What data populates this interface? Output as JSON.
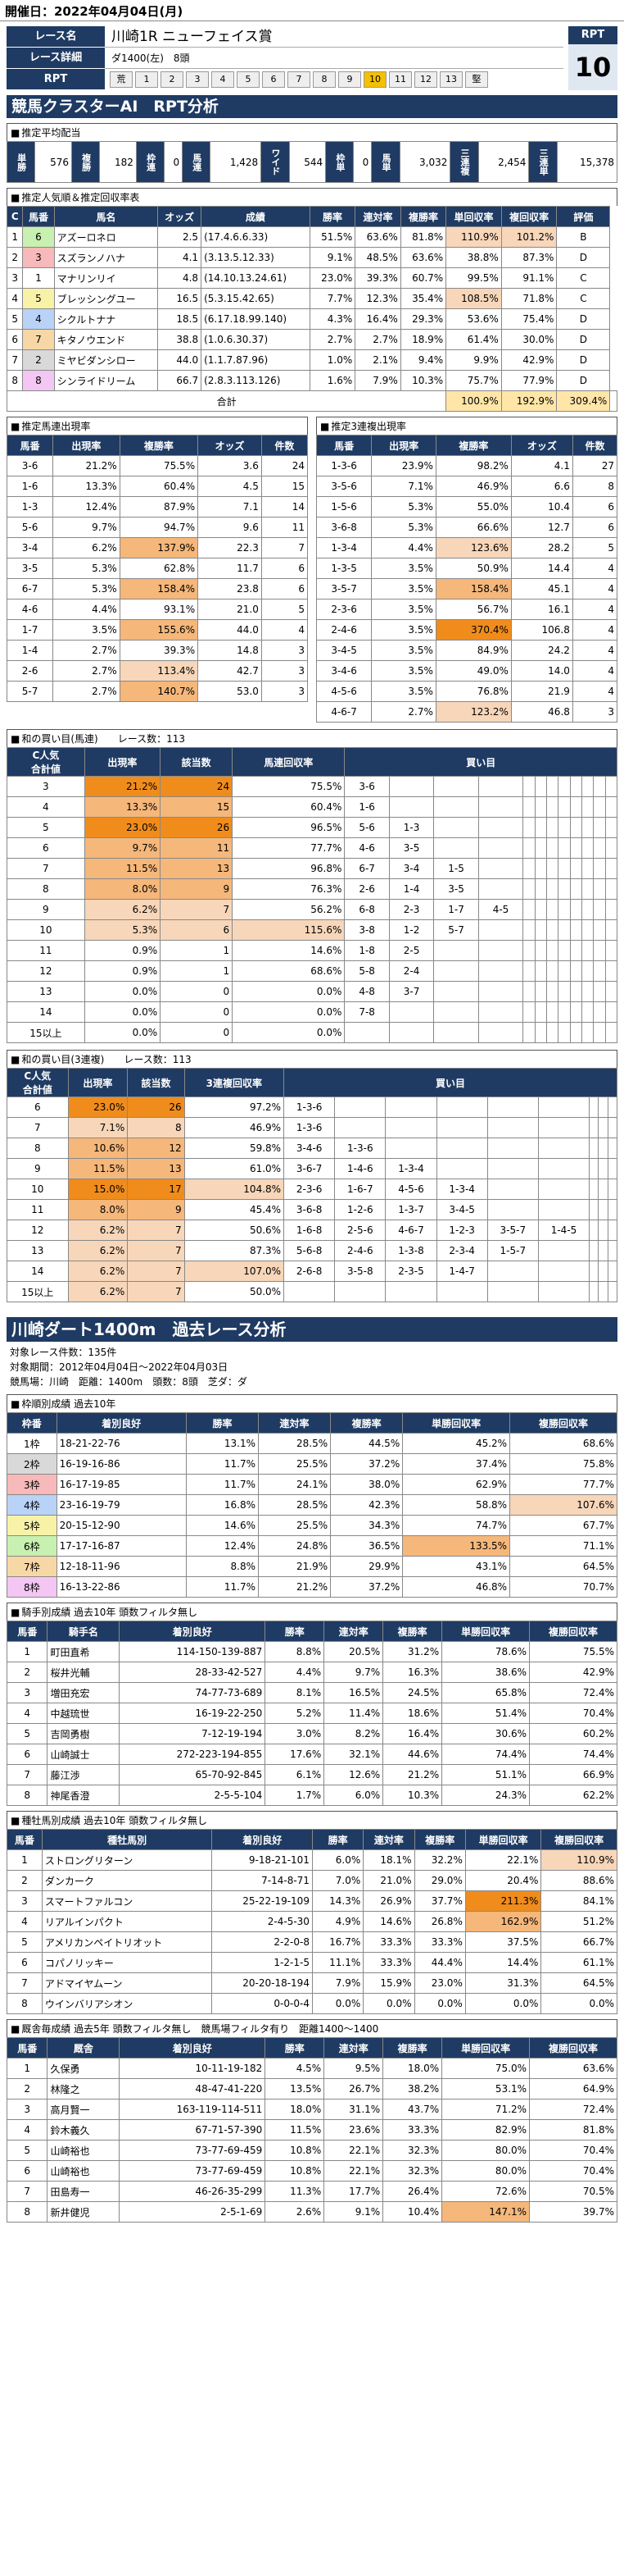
{
  "header": {
    "date_line": "開催日：2022年04月04日(月)"
  },
  "race": {
    "name_label": "レース名",
    "name": "川崎1R ニューフェイス賞",
    "detail_label": "レース詳細",
    "detail": "ダ1400(左)　8頭",
    "rpt_label": "RPT",
    "rpt_scale": [
      "荒",
      "1",
      "2",
      "3",
      "4",
      "5",
      "6",
      "7",
      "8",
      "9",
      "10",
      "11",
      "12",
      "13",
      "堅"
    ],
    "rpt_value": "10"
  },
  "banner": "競馬クラスターAI　RPT分析",
  "avg_payout": {
    "title": "推定平均配当",
    "items": [
      [
        "単勝",
        "576"
      ],
      [
        "複勝",
        "182"
      ],
      [
        "枠連",
        "0"
      ],
      [
        "馬連",
        "1,428"
      ],
      [
        "ワイド",
        "544"
      ],
      [
        "枠単",
        "0"
      ],
      [
        "馬単",
        "3,032"
      ],
      [
        "三連複",
        "2,454"
      ],
      [
        "三連単",
        "15,378"
      ]
    ]
  },
  "popularity": {
    "title": "推定人気順＆推定回収率表",
    "headers": [
      "C",
      "馬番",
      "馬名",
      "オッズ",
      "成績",
      "勝率",
      "連対率",
      "複勝率",
      "単回収率",
      "複回収率",
      "評価"
    ],
    "rows": [
      [
        "1",
        "6",
        "アズーロネロ",
        "2.5",
        "(17.4.6.6.33)",
        "51.5%",
        "63.6%",
        "81.8%",
        "110.9%",
        "101.2%",
        "B"
      ],
      [
        "2",
        "3",
        "スズランノハナ",
        "4.1",
        "(3.13.5.12.33)",
        "9.1%",
        "48.5%",
        "63.6%",
        "38.8%",
        "87.3%",
        "D"
      ],
      [
        "3",
        "1",
        "マナリンリイ",
        "4.8",
        "(14.10.13.24.61)",
        "23.0%",
        "39.3%",
        "60.7%",
        "99.5%",
        "91.1%",
        "C"
      ],
      [
        "4",
        "5",
        "ブレッシングユー",
        "16.5",
        "(5.3.15.42.65)",
        "7.7%",
        "12.3%",
        "35.4%",
        "108.5%",
        "71.8%",
        "C"
      ],
      [
        "5",
        "4",
        "シクルトナナ",
        "18.5",
        "(6.17.18.99.140)",
        "4.3%",
        "16.4%",
        "29.3%",
        "53.6%",
        "75.4%",
        "D"
      ],
      [
        "6",
        "7",
        "キタノウエンド",
        "38.8",
        "(1.0.6.30.37)",
        "2.7%",
        "2.7%",
        "18.9%",
        "61.4%",
        "30.0%",
        "D"
      ],
      [
        "7",
        "2",
        "ミヤビダンシロー",
        "44.0",
        "(1.1.7.87.96)",
        "1.0%",
        "2.1%",
        "9.4%",
        "9.9%",
        "42.9%",
        "D"
      ],
      [
        "8",
        "8",
        "シンライドリーム",
        "66.7",
        "(2.8.3.113.126)",
        "1.6%",
        "7.9%",
        "10.3%",
        "75.7%",
        "77.9%",
        "D"
      ]
    ],
    "total_label": "合計",
    "total": [
      "100.9%",
      "192.9%",
      "309.4%"
    ]
  },
  "umaren": {
    "title": "推定馬連出現率",
    "headers": [
      "馬番",
      "出現率",
      "複勝率",
      "オッズ",
      "件数"
    ],
    "rows": [
      [
        "3-6",
        "21.2%",
        "75.5%",
        "3.6",
        "24"
      ],
      [
        "1-6",
        "13.3%",
        "60.4%",
        "4.5",
        "15"
      ],
      [
        "1-3",
        "12.4%",
        "87.9%",
        "7.1",
        "14"
      ],
      [
        "5-6",
        "9.7%",
        "94.7%",
        "9.6",
        "11"
      ],
      [
        "3-4",
        "6.2%",
        "137.9%",
        "22.3",
        "7"
      ],
      [
        "3-5",
        "5.3%",
        "62.8%",
        "11.7",
        "6"
      ],
      [
        "6-7",
        "5.3%",
        "158.4%",
        "23.8",
        "6"
      ],
      [
        "4-6",
        "4.4%",
        "93.1%",
        "21.0",
        "5"
      ],
      [
        "1-7",
        "3.5%",
        "155.6%",
        "44.0",
        "4"
      ],
      [
        "1-4",
        "2.7%",
        "39.3%",
        "14.8",
        "3"
      ],
      [
        "2-6",
        "2.7%",
        "113.4%",
        "42.7",
        "3"
      ],
      [
        "5-7",
        "2.7%",
        "140.7%",
        "53.0",
        "3"
      ]
    ]
  },
  "sanrenpuku": {
    "title": "推定3連複出現率",
    "headers": [
      "馬番",
      "出現率",
      "複勝率",
      "オッズ",
      "件数"
    ],
    "rows": [
      [
        "1-3-6",
        "23.9%",
        "98.2%",
        "4.1",
        "27"
      ],
      [
        "3-5-6",
        "7.1%",
        "46.9%",
        "6.6",
        "8"
      ],
      [
        "1-5-6",
        "5.3%",
        "55.0%",
        "10.4",
        "6"
      ],
      [
        "3-6-8",
        "5.3%",
        "66.6%",
        "12.7",
        "6"
      ],
      [
        "1-3-4",
        "4.4%",
        "123.6%",
        "28.2",
        "5"
      ],
      [
        "1-3-5",
        "3.5%",
        "50.9%",
        "14.4",
        "4"
      ],
      [
        "3-5-7",
        "3.5%",
        "158.4%",
        "45.1",
        "4"
      ],
      [
        "2-3-6",
        "3.5%",
        "56.7%",
        "16.1",
        "4"
      ],
      [
        "2-4-6",
        "3.5%",
        "370.4%",
        "106.8",
        "4"
      ],
      [
        "3-4-5",
        "3.5%",
        "84.9%",
        "24.2",
        "4"
      ],
      [
        "3-4-6",
        "3.5%",
        "49.0%",
        "14.0",
        "4"
      ],
      [
        "4-5-6",
        "3.5%",
        "76.8%",
        "21.9",
        "4"
      ],
      [
        "4-6-7",
        "2.7%",
        "123.2%",
        "46.8",
        "3"
      ]
    ]
  },
  "buy_umaren": {
    "title": "和の買い目(馬連)",
    "count_label": "レース数：113",
    "headers": [
      "C人気\n合計値",
      "出現率",
      "該当数",
      "馬連回収率",
      "買い目"
    ],
    "rows": [
      [
        "3",
        "21.2%",
        "24",
        "75.5%",
        [
          "3-6"
        ]
      ],
      [
        "4",
        "13.3%",
        "15",
        "60.4%",
        [
          "1-6"
        ]
      ],
      [
        "5",
        "23.0%",
        "26",
        "96.5%",
        [
          "5-6",
          "1-3"
        ]
      ],
      [
        "6",
        "9.7%",
        "11",
        "77.7%",
        [
          "4-6",
          "3-5"
        ]
      ],
      [
        "7",
        "11.5%",
        "13",
        "96.8%",
        [
          "6-7",
          "3-4",
          "1-5"
        ]
      ],
      [
        "8",
        "8.0%",
        "9",
        "76.3%",
        [
          "2-6",
          "1-4",
          "3-5"
        ]
      ],
      [
        "9",
        "6.2%",
        "7",
        "56.2%",
        [
          "6-8",
          "2-3",
          "1-7",
          "4-5"
        ]
      ],
      [
        "10",
        "5.3%",
        "6",
        "115.6%",
        [
          "3-8",
          "1-2",
          "5-7"
        ]
      ],
      [
        "11",
        "0.9%",
        "1",
        "14.6%",
        [
          "1-8",
          "2-5"
        ]
      ],
      [
        "12",
        "0.9%",
        "1",
        "68.6%",
        [
          "5-8",
          "2-4"
        ]
      ],
      [
        "13",
        "0.0%",
        "0",
        "0.0%",
        [
          "4-8",
          "3-7"
        ]
      ],
      [
        "14",
        "0.0%",
        "0",
        "0.0%",
        [
          "7-8"
        ]
      ],
      [
        "15以上",
        "0.0%",
        "0",
        "0.0%",
        []
      ]
    ]
  },
  "buy_sanren": {
    "title": "和の買い目(3連複)",
    "count_label": "レース数：113",
    "headers": [
      "C人気\n合計値",
      "出現率",
      "該当数",
      "3連複回収率",
      "買い目"
    ],
    "rows": [
      [
        "6",
        "23.0%",
        "26",
        "97.2%",
        [
          "1-3-6"
        ]
      ],
      [
        "7",
        "7.1%",
        "8",
        "46.9%",
        [
          "1-3-6"
        ]
      ],
      [
        "8",
        "10.6%",
        "12",
        "59.8%",
        [
          "3-4-6",
          "1-3-6"
        ]
      ],
      [
        "9",
        "11.5%",
        "13",
        "61.0%",
        [
          "3-6-7",
          "1-4-6",
          "1-3-4"
        ]
      ],
      [
        "10",
        "15.0%",
        "17",
        "104.8%",
        [
          "2-3-6",
          "1-6-7",
          "4-5-6",
          "1-3-4"
        ]
      ],
      [
        "11",
        "8.0%",
        "9",
        "45.4%",
        [
          "3-6-8",
          "1-2-6",
          "1-3-7",
          "3-4-5"
        ]
      ],
      [
        "12",
        "6.2%",
        "7",
        "50.6%",
        [
          "1-6-8",
          "2-5-6",
          "4-6-7",
          "1-2-3",
          "3-5-7",
          "1-4-5"
        ]
      ],
      [
        "13",
        "6.2%",
        "7",
        "87.3%",
        [
          "5-6-8",
          "2-4-6",
          "1-3-8",
          "2-3-4",
          "1-5-7"
        ]
      ],
      [
        "14",
        "6.2%",
        "7",
        "107.0%",
        [
          "2-6-8",
          "3-5-8",
          "2-3-5",
          "1-4-7"
        ]
      ],
      [
        "15以上",
        "6.2%",
        "7",
        "50.0%",
        []
      ]
    ]
  },
  "course": {
    "title": "川崎ダート1400m　過去レース分析",
    "meta1": "対象レース件数：135件",
    "meta2": "対象期間：2012年04月04日～2022年04月03日",
    "meta3": "競馬場：川崎　距離：1400m　頭数：8頭　芝ダ：ダ"
  },
  "waku": {
    "title": "枠順別成績 過去10年",
    "headers": [
      "枠番",
      "着別良好",
      "勝率",
      "連対率",
      "複勝率",
      "単勝回収率",
      "複勝回収率"
    ],
    "rows": [
      [
        "1枠",
        "18-21-22-76",
        "13.1%",
        "28.5%",
        "44.5%",
        "45.2%",
        "68.6%"
      ],
      [
        "2枠",
        "16-19-16-86",
        "11.7%",
        "25.5%",
        "37.2%",
        "37.4%",
        "75.8%"
      ],
      [
        "3枠",
        "16-17-19-85",
        "11.7%",
        "24.1%",
        "38.0%",
        "62.9%",
        "77.7%"
      ],
      [
        "4枠",
        "23-16-19-79",
        "16.8%",
        "28.5%",
        "42.3%",
        "58.8%",
        "107.6%"
      ],
      [
        "5枠",
        "20-15-12-90",
        "14.6%",
        "25.5%",
        "34.3%",
        "74.7%",
        "67.7%"
      ],
      [
        "6枠",
        "17-17-16-87",
        "12.4%",
        "24.8%",
        "36.5%",
        "133.5%",
        "71.1%"
      ],
      [
        "7枠",
        "12-18-11-96",
        "8.8%",
        "21.9%",
        "29.9%",
        "43.1%",
        "64.5%"
      ],
      [
        "8枠",
        "16-13-22-86",
        "11.7%",
        "21.2%",
        "37.2%",
        "46.8%",
        "70.7%"
      ]
    ]
  },
  "jockey": {
    "title": "騎手別成績 過去10年 頭数フィルタ無し",
    "headers": [
      "馬番",
      "騎手名",
      "着別良好",
      "勝率",
      "連対率",
      "複勝率",
      "単勝回収率",
      "複勝回収率"
    ],
    "rows": [
      [
        "1",
        "町田直希",
        "114-150-139-887",
        "8.8%",
        "20.5%",
        "31.2%",
        "78.6%",
        "75.5%"
      ],
      [
        "2",
        "桜井光輔",
        "28-33-42-527",
        "4.4%",
        "9.7%",
        "16.3%",
        "38.6%",
        "42.9%"
      ],
      [
        "3",
        "増田充宏",
        "74-77-73-689",
        "8.1%",
        "16.5%",
        "24.5%",
        "65.8%",
        "72.4%"
      ],
      [
        "4",
        "中越琉世",
        "16-19-22-250",
        "5.2%",
        "11.4%",
        "18.6%",
        "51.4%",
        "70.4%"
      ],
      [
        "5",
        "吉岡勇樹",
        "7-12-19-194",
        "3.0%",
        "8.2%",
        "16.4%",
        "30.6%",
        "60.2%"
      ],
      [
        "6",
        "山崎誠士",
        "272-223-194-855",
        "17.6%",
        "32.1%",
        "44.6%",
        "74.4%",
        "74.4%"
      ],
      [
        "7",
        "藤江渉",
        "65-70-92-845",
        "6.1%",
        "12.6%",
        "21.2%",
        "51.1%",
        "66.9%"
      ],
      [
        "8",
        "神尾香澄",
        "2-5-5-104",
        "1.7%",
        "6.0%",
        "10.3%",
        "24.3%",
        "62.2%"
      ]
    ]
  },
  "sire": {
    "title": "種牡馬別成績 過去10年 頭数フィルタ無し",
    "headers": [
      "馬番",
      "種牡馬別",
      "着別良好",
      "勝率",
      "連対率",
      "複勝率",
      "単勝回収率",
      "複勝回収率"
    ],
    "rows": [
      [
        "1",
        "ストロングリターン",
        "9-18-21-101",
        "6.0%",
        "18.1%",
        "32.2%",
        "22.1%",
        "110.9%"
      ],
      [
        "2",
        "ダンカーク",
        "7-14-8-71",
        "7.0%",
        "21.0%",
        "29.0%",
        "20.4%",
        "88.6%"
      ],
      [
        "3",
        "スマートファルコン",
        "25-22-19-109",
        "14.3%",
        "26.9%",
        "37.7%",
        "211.3%",
        "84.1%"
      ],
      [
        "4",
        "リアルインパクト",
        "2-4-5-30",
        "4.9%",
        "14.6%",
        "26.8%",
        "162.9%",
        "51.2%"
      ],
      [
        "5",
        "アメリカンペイトリオット",
        "2-2-0-8",
        "16.7%",
        "33.3%",
        "33.3%",
        "37.5%",
        "66.7%"
      ],
      [
        "6",
        "コパノリッキー",
        "1-2-1-5",
        "11.1%",
        "33.3%",
        "44.4%",
        "14.4%",
        "61.1%"
      ],
      [
        "7",
        "アドマイヤムーン",
        "20-20-18-194",
        "7.9%",
        "15.9%",
        "23.0%",
        "31.3%",
        "64.5%"
      ],
      [
        "8",
        "ウインバリアシオン",
        "0-0-0-4",
        "0.0%",
        "0.0%",
        "0.0%",
        "0.0%",
        "0.0%"
      ]
    ]
  },
  "trainer": {
    "title": "厩舎毎成績 過去5年 頭数フィルタ無し　競馬場フィルタ有り　距離1400～1400",
    "headers": [
      "馬番",
      "厩舎",
      "着別良好",
      "勝率",
      "連対率",
      "複勝率",
      "単勝回収率",
      "複勝回収率"
    ],
    "rows": [
      [
        "1",
        "久保勇",
        "10-11-19-182",
        "4.5%",
        "9.5%",
        "18.0%",
        "75.0%",
        "63.6%"
      ],
      [
        "2",
        "林隆之",
        "48-47-41-220",
        "13.5%",
        "26.7%",
        "38.2%",
        "53.1%",
        "64.9%"
      ],
      [
        "3",
        "高月賢一",
        "163-119-114-511",
        "18.0%",
        "31.1%",
        "43.7%",
        "71.2%",
        "72.4%"
      ],
      [
        "4",
        "鈴木義久",
        "67-71-57-390",
        "11.5%",
        "23.6%",
        "33.3%",
        "82.9%",
        "81.8%"
      ],
      [
        "5",
        "山崎裕也",
        "73-77-69-459",
        "10.8%",
        "22.1%",
        "32.3%",
        "80.0%",
        "70.4%"
      ],
      [
        "6",
        "山崎裕也",
        "73-77-69-459",
        "10.8%",
        "22.1%",
        "32.3%",
        "80.0%",
        "70.4%"
      ],
      [
        "7",
        "田島寿一",
        "46-26-35-299",
        "11.3%",
        "17.7%",
        "26.4%",
        "72.6%",
        "70.5%"
      ],
      [
        "8",
        "新井健児",
        "2-5-1-69",
        "2.6%",
        "9.1%",
        "10.4%",
        "147.1%",
        "39.7%"
      ]
    ]
  },
  "colors": {
    "navy": "#1f3b63",
    "highlight_low": "#f7d6b9",
    "highlight_mid": "#f5b77a",
    "highlight_high": "#f08c1c",
    "rpt_highlight": "#f4c000"
  }
}
